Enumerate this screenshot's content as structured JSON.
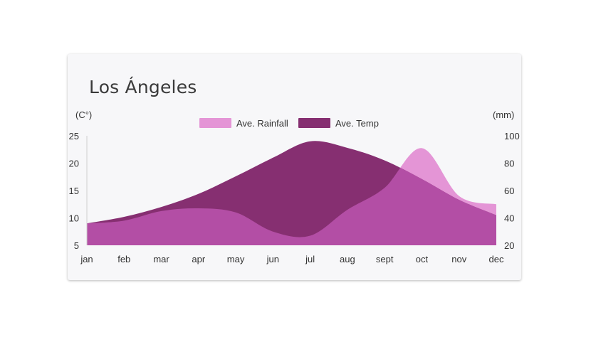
{
  "title": "Los Ángeles",
  "chart_data": {
    "type": "area",
    "title": "Los Ángeles",
    "categories": [
      "jan",
      "feb",
      "mar",
      "apr",
      "may",
      "jun",
      "jul",
      "aug",
      "sept",
      "oct",
      "nov",
      "dec"
    ],
    "left_axis": {
      "unit": "(C°)",
      "min": 5,
      "max": 25,
      "ticks": [
        "5",
        "10",
        "15",
        "20",
        "25"
      ]
    },
    "right_axis": {
      "unit": "(mm)",
      "min": 20,
      "max": 100,
      "ticks": [
        "20",
        "40",
        "60",
        "80",
        "100"
      ]
    },
    "legend_position": "top-center",
    "series": [
      {
        "name": "Ave. Rainfall",
        "axis": "right",
        "color": "#e495d6",
        "values": [
          36,
          38,
          45,
          47,
          44,
          30,
          27,
          46,
          62,
          91,
          56,
          50
        ]
      },
      {
        "name": "Ave. Temp",
        "axis": "left",
        "color": "#862f71",
        "values": [
          9,
          10.2,
          12,
          14.4,
          17.6,
          21,
          24,
          22.8,
          20.5,
          17.1,
          13.3,
          10.5
        ]
      }
    ],
    "overlap_color": "#b34ea5",
    "grid": false
  }
}
